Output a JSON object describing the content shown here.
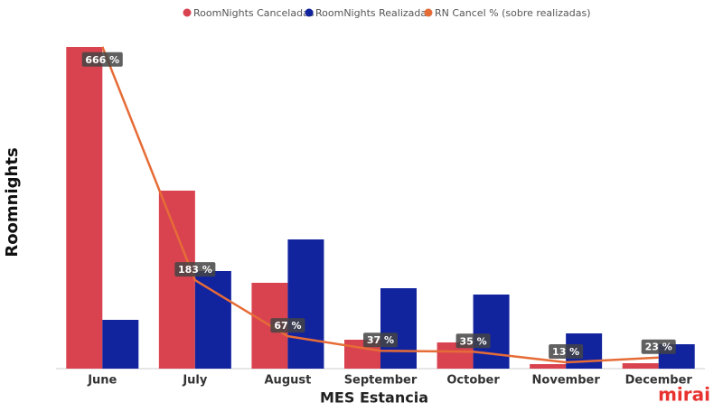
{
  "chart_data": {
    "type": "bar",
    "xlabel": "MES Estancia",
    "ylabel": "Roomnights",
    "logo": "mirai",
    "categories": [
      "June",
      "July",
      "August",
      "September",
      "October",
      "November",
      "December"
    ],
    "series": [
      {
        "name": "RoomNights Canceladas",
        "color": "#d9434f",
        "values": [
          356,
          197,
          95,
          32,
          29,
          5,
          6
        ]
      },
      {
        "name": "RoomNights Realizadas",
        "color": "#12239e",
        "values": [
          54,
          108,
          143,
          89,
          82,
          39,
          27
        ]
      },
      {
        "name": "RN Cancel % (sobre realizadas)",
        "color": "#e66c37",
        "type": "line",
        "axis": "y2",
        "values": [
          666,
          183,
          67,
          37,
          35,
          13,
          23
        ],
        "value_labels": [
          "666 %",
          "183 %",
          "67 %",
          "37 %",
          "35 %",
          "13 %",
          "23 %"
        ]
      }
    ],
    "ylim": [
      0,
      368
    ],
    "y2lim": [
      0,
      688
    ],
    "legend": "top"
  }
}
